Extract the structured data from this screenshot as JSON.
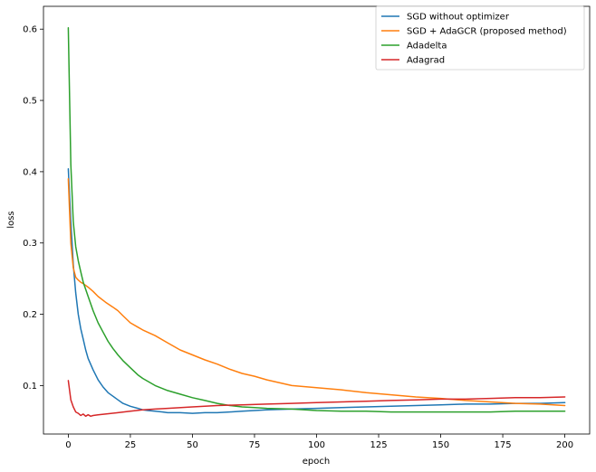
{
  "chart_data": {
    "type": "line",
    "title": "",
    "xlabel": "epoch",
    "ylabel": "loss",
    "xlim": [
      -10,
      210
    ],
    "ylim": [
      0.032,
      0.632
    ],
    "xticks": [
      0,
      25,
      50,
      75,
      100,
      125,
      150,
      175,
      200
    ],
    "yticks": [
      0.1,
      0.2,
      0.3,
      0.4,
      0.5,
      0.6
    ],
    "xtick_labels": [
      "0",
      "25",
      "50",
      "75",
      "100",
      "125",
      "150",
      "175",
      "200"
    ],
    "ytick_labels": [
      "0.1",
      "0.2",
      "0.3",
      "0.4",
      "0.5",
      "0.6"
    ],
    "grid": false,
    "legend_position": "top-right",
    "series": [
      {
        "name": "SGD without optimizer",
        "color": "#1f77b4",
        "x": [
          0,
          1,
          2,
          3,
          4,
          5,
          6,
          7,
          8,
          10,
          12,
          14,
          16,
          18,
          20,
          22,
          25,
          28,
          30,
          32,
          35,
          38,
          40,
          45,
          50,
          55,
          60,
          65,
          70,
          75,
          80,
          90,
          100,
          110,
          120,
          130,
          140,
          150,
          160,
          170,
          180,
          190,
          200
        ],
        "y": [
          0.404,
          0.33,
          0.27,
          0.23,
          0.2,
          0.18,
          0.165,
          0.15,
          0.138,
          0.122,
          0.108,
          0.098,
          0.09,
          0.085,
          0.08,
          0.075,
          0.071,
          0.068,
          0.066,
          0.065,
          0.064,
          0.063,
          0.062,
          0.062,
          0.061,
          0.062,
          0.062,
          0.063,
          0.064,
          0.065,
          0.066,
          0.067,
          0.068,
          0.069,
          0.07,
          0.071,
          0.072,
          0.073,
          0.074,
          0.074,
          0.075,
          0.075,
          0.076
        ]
      },
      {
        "name": "SGD + AdaGCR (proposed method)",
        "color": "#ff7f0e",
        "x": [
          0,
          1,
          2,
          3,
          4,
          5,
          6,
          8,
          10,
          12,
          15,
          18,
          20,
          22,
          25,
          28,
          30,
          35,
          40,
          45,
          50,
          55,
          60,
          65,
          70,
          75,
          80,
          90,
          100,
          110,
          120,
          130,
          140,
          150,
          160,
          170,
          180,
          190,
          200
        ],
        "y": [
          0.39,
          0.3,
          0.265,
          0.252,
          0.248,
          0.245,
          0.243,
          0.238,
          0.232,
          0.225,
          0.217,
          0.21,
          0.205,
          0.198,
          0.188,
          0.182,
          0.178,
          0.17,
          0.16,
          0.15,
          0.143,
          0.136,
          0.13,
          0.123,
          0.117,
          0.113,
          0.108,
          0.1,
          0.097,
          0.094,
          0.09,
          0.087,
          0.084,
          0.082,
          0.079,
          0.077,
          0.075,
          0.074,
          0.072
        ]
      },
      {
        "name": "Adadelta",
        "color": "#2ca02c",
        "x": [
          0,
          1,
          2,
          3,
          4,
          5,
          6,
          8,
          10,
          12,
          14,
          16,
          18,
          20,
          22,
          25,
          28,
          30,
          35,
          40,
          45,
          50,
          55,
          60,
          65,
          70,
          75,
          80,
          90,
          100,
          110,
          120,
          130,
          140,
          150,
          160,
          170,
          180,
          190,
          200
        ],
        "y": [
          0.602,
          0.41,
          0.33,
          0.295,
          0.275,
          0.26,
          0.245,
          0.225,
          0.205,
          0.188,
          0.175,
          0.162,
          0.152,
          0.143,
          0.135,
          0.125,
          0.115,
          0.11,
          0.1,
          0.093,
          0.088,
          0.083,
          0.079,
          0.075,
          0.072,
          0.07,
          0.069,
          0.068,
          0.067,
          0.065,
          0.064,
          0.064,
          0.063,
          0.063,
          0.063,
          0.063,
          0.063,
          0.064,
          0.064,
          0.064
        ]
      },
      {
        "name": "Adagrad",
        "color": "#d62728",
        "x": [
          0,
          1,
          2,
          3,
          4,
          5,
          6,
          7,
          8,
          9,
          10,
          12,
          15,
          20,
          25,
          30,
          35,
          40,
          50,
          60,
          70,
          80,
          90,
          100,
          110,
          120,
          130,
          140,
          150,
          160,
          170,
          180,
          190,
          200
        ],
        "y": [
          0.107,
          0.08,
          0.07,
          0.063,
          0.061,
          0.058,
          0.06,
          0.057,
          0.059,
          0.057,
          0.058,
          0.059,
          0.06,
          0.062,
          0.064,
          0.066,
          0.067,
          0.068,
          0.07,
          0.072,
          0.073,
          0.074,
          0.075,
          0.076,
          0.077,
          0.078,
          0.079,
          0.08,
          0.081,
          0.081,
          0.082,
          0.083,
          0.083,
          0.084
        ]
      }
    ]
  }
}
